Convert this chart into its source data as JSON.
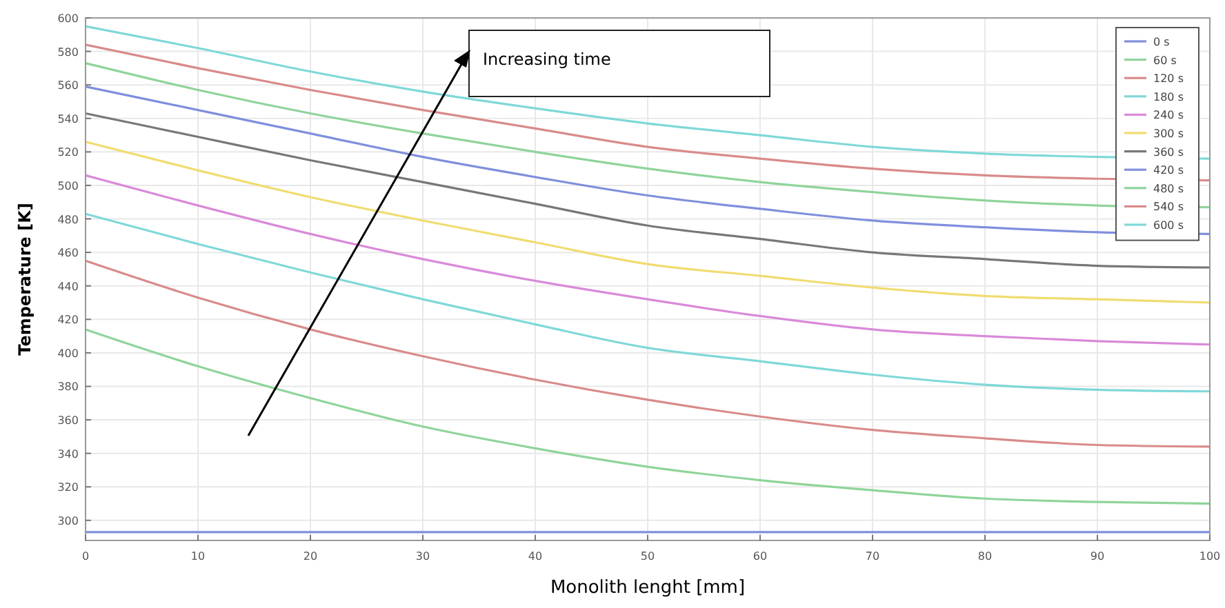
{
  "chart_data": {
    "type": "line",
    "xlabel": "Monolith lenght [mm]",
    "ylabel": "Temperature [K]",
    "x": [
      0,
      10,
      20,
      30,
      40,
      50,
      60,
      70,
      80,
      90,
      100
    ],
    "xlim": [
      0,
      100
    ],
    "xticks": [
      0,
      10,
      20,
      30,
      40,
      50,
      60,
      70,
      80,
      90,
      100
    ],
    "ylim": [
      288,
      600
    ],
    "yticks": [
      300,
      320,
      340,
      360,
      380,
      400,
      420,
      440,
      460,
      480,
      500,
      520,
      540,
      560,
      580,
      600
    ],
    "grid": true,
    "legend": "top right",
    "annotations": [
      "Increasing time"
    ],
    "series": [
      {
        "name": "0 s",
        "color": "#7f8fdc",
        "values": [
          293,
          293,
          293,
          293,
          293,
          293,
          293,
          293,
          293,
          293,
          293
        ]
      },
      {
        "name": "60 s",
        "color": "#8fd49a",
        "values": [
          414,
          392,
          373,
          356,
          343,
          332,
          324,
          318,
          313,
          311,
          310
        ]
      },
      {
        "name": "120 s",
        "color": "#d98a8a",
        "values": [
          455,
          433,
          414,
          398,
          384,
          372,
          362,
          354,
          349,
          345,
          344
        ]
      },
      {
        "name": "180 s",
        "color": "#7fd8d8",
        "values": [
          483,
          465,
          448,
          432,
          417,
          403,
          395,
          387,
          381,
          378,
          377
        ]
      },
      {
        "name": "240 s",
        "color": "#d98ad9",
        "values": [
          506,
          488,
          471,
          456,
          443,
          432,
          422,
          414,
          410,
          407,
          405
        ]
      },
      {
        "name": "300 s",
        "color": "#f0dc70",
        "values": [
          526,
          509,
          493,
          479,
          466,
          453,
          446,
          439,
          434,
          432,
          430
        ]
      },
      {
        "name": "360 s",
        "color": "#777777",
        "values": [
          543,
          529,
          515,
          502,
          489,
          476,
          468,
          460,
          456,
          452,
          451
        ]
      },
      {
        "name": "420 s",
        "color": "#7f8fdc",
        "values": [
          559,
          545,
          531,
          517,
          505,
          494,
          486,
          479,
          475,
          472,
          471
        ]
      },
      {
        "name": "480 s",
        "color": "#8fd49a",
        "values": [
          573,
          557,
          543,
          531,
          520,
          510,
          502,
          496,
          491,
          488,
          487
        ]
      },
      {
        "name": "540 s",
        "color": "#d98a8a",
        "values": [
          584,
          570,
          557,
          545,
          534,
          523,
          516,
          510,
          506,
          504,
          503
        ]
      },
      {
        "name": "600 s",
        "color": "#7fd8d8",
        "values": [
          595,
          582,
          568,
          556,
          546,
          537,
          530,
          523,
          519,
          517,
          516
        ]
      }
    ]
  }
}
